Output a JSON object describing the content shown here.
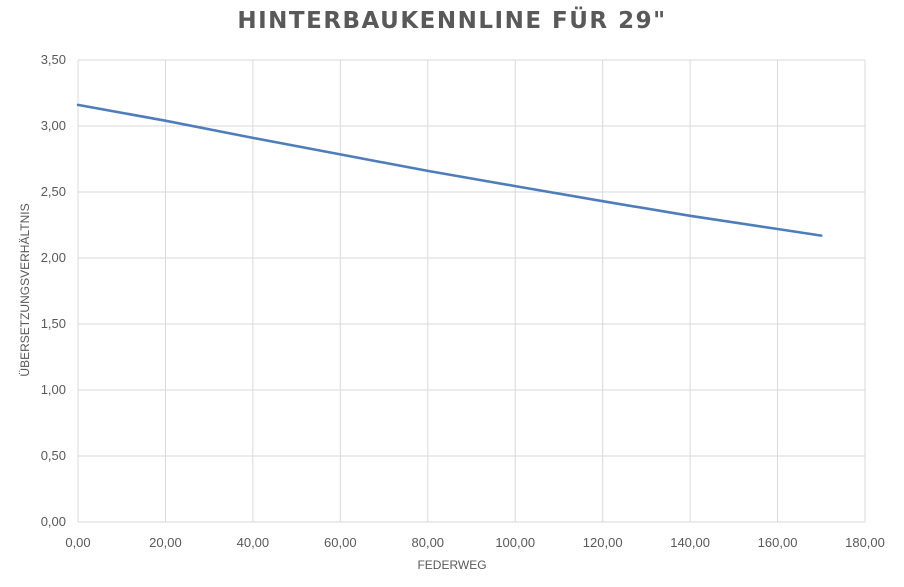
{
  "chart_data": {
    "type": "line",
    "title": "HINTERBAUKENNLINE FÜR 29\"",
    "xlabel": "FEDERWEG",
    "ylabel": "ÜBERSETZUNGSVERHÄLTNIS",
    "xlim": [
      0,
      180
    ],
    "ylim": [
      0,
      3.5
    ],
    "x_ticks": [
      "0,00",
      "20,00",
      "40,00",
      "60,00",
      "80,00",
      "100,00",
      "120,00",
      "140,00",
      "160,00",
      "180,00"
    ],
    "y_ticks": [
      "0,00",
      "0,50",
      "1,00",
      "1,50",
      "2,00",
      "2,50",
      "3,00",
      "3,50"
    ],
    "grid": true,
    "series": [
      {
        "color": "#4f7dbb",
        "x": [
          0,
          20,
          40,
          60,
          80,
          100,
          120,
          140,
          160,
          170
        ],
        "y": [
          3.16,
          3.04,
          2.91,
          2.785,
          2.66,
          2.545,
          2.43,
          2.32,
          2.22,
          2.17
        ]
      }
    ]
  }
}
